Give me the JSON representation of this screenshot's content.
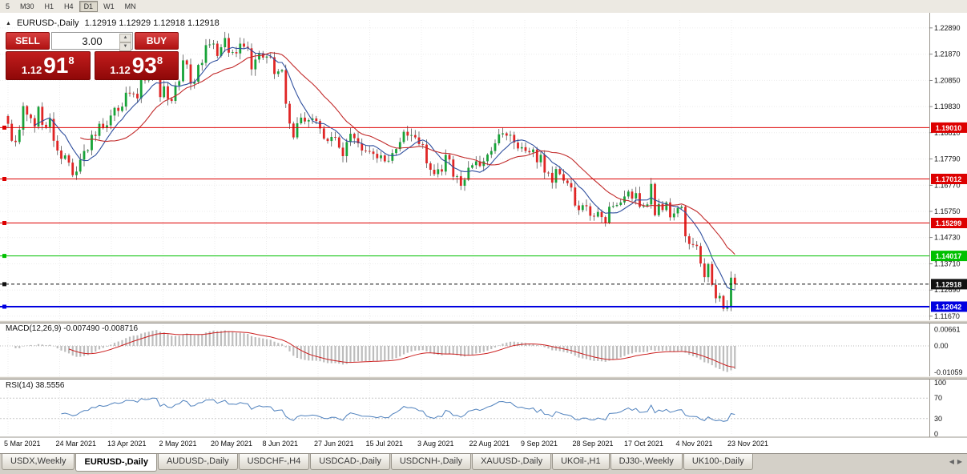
{
  "toolbar": {
    "timeframes": [
      {
        "label": "5",
        "active": false
      },
      {
        "label": "M30",
        "active": false
      },
      {
        "label": "H1",
        "active": false
      },
      {
        "label": "H4",
        "active": false
      },
      {
        "label": "D1",
        "active": true
      },
      {
        "label": "W1",
        "active": false
      },
      {
        "label": "MN",
        "active": false
      }
    ]
  },
  "chart_header": {
    "collapse_icon": "▲",
    "symbol_title": "EURUSD-,Daily",
    "ohlc": "1.12919 1.12929 1.12918 1.12918"
  },
  "trade_panel": {
    "sell_label": "SELL",
    "buy_label": "BUY",
    "volume": "3.00",
    "spin_up": "▲",
    "spin_down": "▼",
    "sell_price": {
      "prefix": "1.12",
      "big": "91",
      "sup": "8"
    },
    "buy_price": {
      "prefix": "1.12",
      "big": "93",
      "sup": "8"
    }
  },
  "indicators": {
    "macd": {
      "label": "MACD(12,26,9) -0.007490 -0.008716",
      "axis_labels": [
        "0.00661",
        "0.00",
        "-0.01059"
      ],
      "params": [
        12,
        26,
        9
      ]
    },
    "rsi": {
      "label": "RSI(14) 38.5556",
      "axis_labels": [
        "100",
        "70",
        "30",
        "0"
      ],
      "period": 14,
      "levels": [
        70,
        30
      ]
    }
  },
  "chart_data": {
    "type": "candlestick",
    "symbol": "EURUSD-",
    "timeframe": "Daily",
    "title": "EURUSD-,Daily",
    "y_range": [
      1.1151,
      1.232
    ],
    "up_color": "#17a338",
    "down_color": "#e02525",
    "ma_fast": {
      "period": 8,
      "color": "#2f4f9e"
    },
    "ma_slow": {
      "period": 20,
      "color": "#c22b2b"
    },
    "price_axis_ticks": [
      "1.22890",
      "1.21870",
      "1.20850",
      "1.19830",
      "1.18810",
      "1.17790",
      "1.16770",
      "1.15750",
      "1.14730",
      "1.13710",
      "1.12690",
      "1.11670"
    ],
    "date_axis_ticks": [
      "5 Mar 2021",
      "24 Mar 2021",
      "13 Apr 2021",
      "2 May 2021",
      "20 May 2021",
      "8 Jun 2021",
      "27 Jun 2021",
      "15 Jul 2021",
      "3 Aug 2021",
      "22 Aug 2021",
      "9 Sep 2021",
      "28 Sep 2021",
      "17 Oct 2021",
      "4 Nov 2021",
      "23 Nov 2021"
    ],
    "levels": [
      {
        "label": "1.19010",
        "price": 1.1901,
        "color": "#dd0000",
        "width": 1,
        "dash": false
      },
      {
        "label": "1.17012",
        "price": 1.17012,
        "color": "#dd0000",
        "width": 1,
        "dash": false
      },
      {
        "label": "1.15299",
        "price": 1.15299,
        "color": "#dd0000",
        "width": 1,
        "dash": false
      },
      {
        "label": "1.14017",
        "price": 1.14017,
        "color": "#00c000",
        "width": 1,
        "dash": false
      },
      {
        "label": "1.12918",
        "price": 1.12918,
        "color": "#111111",
        "width": 1,
        "dash": true
      },
      {
        "label": "1.12042",
        "price": 1.12042,
        "color": "#0000e0",
        "width": 2,
        "dash": false
      }
    ],
    "closes": [
      1.1916,
      1.185,
      1.1845,
      1.1893,
      1.1985,
      1.1952,
      1.1938,
      1.1905,
      1.1982,
      1.1912,
      1.1903,
      1.1935,
      1.185,
      1.1812,
      1.178,
      1.1793,
      1.1765,
      1.1716,
      1.173,
      1.1776,
      1.181,
      1.1813,
      1.1873,
      1.1869,
      1.1916,
      1.1899,
      1.191,
      1.1948,
      1.1978,
      1.1966,
      1.1983,
      1.2037,
      1.2034,
      1.2033,
      1.2015,
      1.2098,
      1.2085,
      1.2093,
      1.2125,
      1.2122,
      1.202,
      1.2062,
      1.2013,
      1.2005,
      1.2065,
      1.2082,
      1.2163,
      1.2147,
      1.2072,
      1.208,
      1.2145,
      1.2153,
      1.2222,
      1.2225,
      1.2228,
      1.218,
      1.2214,
      1.225,
      1.2193,
      1.2195,
      1.219,
      1.2228,
      1.2216,
      1.221,
      1.2128,
      1.2166,
      1.2191,
      1.2174,
      1.2178,
      1.2175,
      1.211,
      1.212,
      1.2125,
      1.1994,
      1.1917,
      1.1863,
      1.1918,
      1.194,
      1.1925,
      1.193,
      1.1937,
      1.1927,
      1.1898,
      1.1858,
      1.1849,
      1.1865,
      1.1863,
      1.1823,
      1.179,
      1.1845,
      1.1877,
      1.186,
      1.184,
      1.1812,
      1.181,
      1.1808,
      1.1799,
      1.1782,
      1.1793,
      1.177,
      1.1772,
      1.1802,
      1.1818,
      1.1845,
      1.1885,
      1.187,
      1.1872,
      1.1863,
      1.1837,
      1.1835,
      1.1762,
      1.1737,
      1.172,
      1.1739,
      1.173,
      1.1795,
      1.1777,
      1.171,
      1.1712,
      1.1675,
      1.1698,
      1.1745,
      1.1755,
      1.177,
      1.1752,
      1.177,
      1.1796,
      1.181,
      1.184,
      1.1875,
      1.1879,
      1.187,
      1.1873,
      1.1843,
      1.182,
      1.1825,
      1.181,
      1.1805,
      1.1816,
      1.1766,
      1.1795,
      1.1726,
      1.1725,
      1.1687,
      1.174,
      1.172,
      1.1695,
      1.1685,
      1.1668,
      1.1598,
      1.158,
      1.1599,
      1.1595,
      1.1558,
      1.1555,
      1.1573,
      1.1553,
      1.153,
      1.1593,
      1.1596,
      1.16,
      1.161,
      1.1633,
      1.1652,
      1.1625,
      1.1646,
      1.1593,
      1.1596,
      1.1602,
      1.1682,
      1.156,
      1.1604,
      1.158,
      1.161,
      1.1552,
      1.1567,
      1.1588,
      1.1593,
      1.1478,
      1.1448,
      1.1445,
      1.144,
      1.1372,
      1.1319,
      1.137,
      1.1289,
      1.1237,
      1.1246,
      1.1196,
      1.1205,
      1.1317,
      1.1292
    ]
  },
  "tabs": {
    "items": [
      {
        "label": "USDX,Weekly",
        "active": false
      },
      {
        "label": "EURUSD-,Daily",
        "active": true
      },
      {
        "label": "AUDUSD-,Daily",
        "active": false
      },
      {
        "label": "USDCHF-,H4",
        "active": false
      },
      {
        "label": "USDCAD-,Daily",
        "active": false
      },
      {
        "label": "USDCNH-,Daily",
        "active": false
      },
      {
        "label": "XAUUSD-,Daily",
        "active": false
      },
      {
        "label": "UKOil-,H1",
        "active": false
      },
      {
        "label": "DJ30-,Weekly",
        "active": false
      },
      {
        "label": "UK100-,Daily",
        "active": false
      }
    ],
    "scroll_left": "◀",
    "scroll_right": "▶"
  }
}
